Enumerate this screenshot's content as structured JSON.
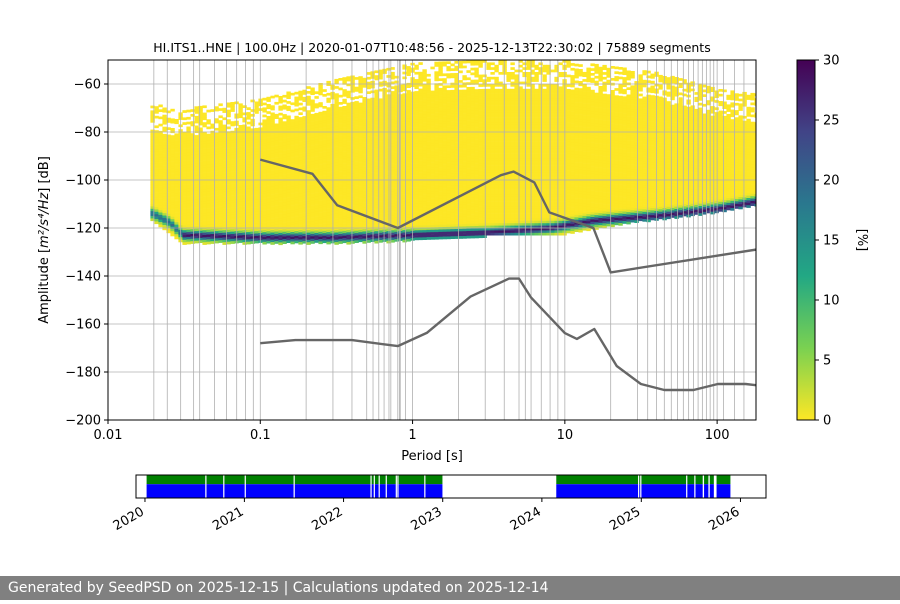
{
  "chart_data": [
    {
      "type": "heatmap",
      "title": "HI.ITS1..HNE | 100.0Hz | 2020-01-07T10:48:56 - 2025-12-13T22:30:02 | 75889 segments",
      "xlabel": "Period [s]",
      "ylabel_prefix": "Amplitude [",
      "ylabel_unit": "m²/s⁴/Hz",
      "ylabel_suffix": "] [dB]",
      "x_scale": "log",
      "xlim": [
        0.01,
        180
      ],
      "ylim": [
        -200,
        -50
      ],
      "x_ticks": [
        {
          "value": 0.01,
          "label": "0.01"
        },
        {
          "value": 0.1,
          "label": "0.1"
        },
        {
          "value": 1,
          "label": "1"
        },
        {
          "value": 10,
          "label": "10"
        },
        {
          "value": 100,
          "label": "100"
        }
      ],
      "y_ticks": [
        {
          "value": -60,
          "label": "−60"
        },
        {
          "value": -80,
          "label": "−80"
        },
        {
          "value": -100,
          "label": "−100"
        },
        {
          "value": -120,
          "label": "−120"
        },
        {
          "value": -140,
          "label": "−140"
        },
        {
          "value": -160,
          "label": "−160"
        },
        {
          "value": -180,
          "label": "−180"
        },
        {
          "value": -200,
          "label": "−200"
        }
      ],
      "grid": true,
      "colormap": "viridis_r",
      "colorbar": {
        "label": "[%]",
        "range": [
          0,
          30
        ],
        "ticks": [
          {
            "value": 0,
            "label": "0"
          },
          {
            "value": 5,
            "label": "5"
          },
          {
            "value": 10,
            "label": "10"
          },
          {
            "value": 15,
            "label": "15"
          },
          {
            "value": 20,
            "label": "20"
          },
          {
            "value": 25,
            "label": "25"
          },
          {
            "value": 30,
            "label": "30"
          }
        ],
        "colors": [
          "#fde725",
          "#7ad151",
          "#22a884",
          "#2a788e",
          "#414487",
          "#440154"
        ]
      },
      "psd_distribution": {
        "period_start": 0.019,
        "mode_db": [
          [
            0.019,
            -114
          ],
          [
            0.025,
            -118
          ],
          [
            0.03,
            -123
          ],
          [
            0.1,
            -124
          ],
          [
            0.3,
            -124
          ],
          [
            1,
            -123
          ],
          [
            3,
            -122
          ],
          [
            8,
            -120
          ],
          [
            15,
            -117
          ],
          [
            40,
            -115
          ],
          [
            100,
            -112
          ],
          [
            180,
            -109
          ]
        ],
        "upper_edge_db": [
          [
            0.019,
            -68
          ],
          [
            0.03,
            -70
          ],
          [
            0.1,
            -66
          ],
          [
            0.3,
            -58
          ],
          [
            1,
            -51
          ],
          [
            3,
            -50
          ],
          [
            10,
            -50
          ],
          [
            40,
            -55
          ],
          [
            100,
            -62
          ],
          [
            180,
            -64
          ]
        ],
        "lower_edge_db": [
          [
            0.019,
            -117
          ],
          [
            0.03,
            -126
          ],
          [
            0.1,
            -126
          ],
          [
            0.3,
            -126
          ],
          [
            1,
            -125
          ],
          [
            3,
            -123
          ],
          [
            10,
            -122
          ],
          [
            30,
            -117
          ],
          [
            100,
            -113
          ],
          [
            180,
            -110
          ]
        ]
      },
      "noise_models": [
        {
          "color": "#666666",
          "points": [
            [
              0.1,
              -91.5
            ],
            [
              0.22,
              -97.4
            ],
            [
              0.32,
              -110.5
            ],
            [
              0.8,
              -120
            ],
            [
              3.8,
              -98
            ],
            [
              4.6,
              -96.5
            ],
            [
              6.3,
              -101
            ],
            [
              7.9,
              -113.5
            ],
            [
              15.4,
              -120
            ],
            [
              20,
              -138.5
            ],
            [
              180,
              -129
            ]
          ]
        },
        {
          "color": "#666666",
          "points": [
            [
              0.1,
              -168
            ],
            [
              0.17,
              -166.7
            ],
            [
              0.4,
              -166.7
            ],
            [
              0.8,
              -169.2
            ],
            [
              1.24,
              -163.7
            ],
            [
              2.4,
              -148.6
            ],
            [
              4.3,
              -141.1
            ],
            [
              5,
              -141.1
            ],
            [
              6,
              -149
            ],
            [
              10,
              -163.8
            ],
            [
              12,
              -166.2
            ],
            [
              15.6,
              -162.1
            ],
            [
              21.9,
              -177.5
            ],
            [
              31.6,
              -185
            ],
            [
              45,
              -187.5
            ],
            [
              70,
              -187.5
            ],
            [
              101,
              -185
            ],
            [
              154,
              -185
            ],
            [
              180,
              -185.5
            ]
          ]
        }
      ],
      "period_grid_lines": [
        0.02,
        0.03,
        0.04,
        0.05,
        0.06,
        0.07,
        0.08,
        0.09,
        0.2,
        0.3,
        0.4,
        0.5,
        0.6,
        0.7,
        0.8,
        0.9,
        2,
        3,
        4,
        5,
        6,
        7,
        8,
        9,
        20,
        30,
        40,
        50,
        60,
        70,
        80,
        90,
        0.0245,
        0.0365,
        0.55,
        0.65,
        0.72,
        0.82,
        0.83,
        5.5,
        35,
        45,
        55,
        65,
        75,
        85,
        95,
        110,
        130,
        150
      ]
    },
    {
      "type": "timeline",
      "x_type": "date",
      "xlim": [
        "2019-11-29",
        "2026-04-05"
      ],
      "x_ticks": [
        {
          "value": "2020-01-01",
          "label": "2020"
        },
        {
          "value": "2021-01-01",
          "label": "2021"
        },
        {
          "value": "2022-01-01",
          "label": "2022"
        },
        {
          "value": "2023-01-01",
          "label": "2023"
        },
        {
          "value": "2024-01-01",
          "label": "2024"
        },
        {
          "value": "2025-01-01",
          "label": "2025"
        },
        {
          "value": "2026-01-01",
          "label": "2026"
        }
      ],
      "tick_label_rotation": 30,
      "top_color": "#008000",
      "bottom_color": "#0000ff",
      "data_segments": [
        [
          "2020-01-07",
          "2022-12-31"
        ],
        [
          "2024-02-23",
          "2025-08-15"
        ],
        [
          "2025-08-20",
          "2025-09-05"
        ],
        [
          "2025-09-10",
          "2025-09-25"
        ],
        [
          "2025-10-05",
          "2025-11-25"
        ]
      ],
      "gaps": [
        "2020-08-10",
        "2020-10-15",
        "2021-01-02",
        "2021-07-01",
        "2022-04-10",
        "2022-04-22",
        "2022-05-10",
        "2022-06-05",
        "2022-07-12",
        "2022-07-18",
        "2022-10-25",
        "2024-12-20",
        "2024-12-28",
        "2025-06-15",
        "2025-07-15"
      ]
    }
  ],
  "footer": {
    "text": "Generated by SeedPSD on 2025-12-15 | Calculations updated on 2025-12-14",
    "background": "#808080"
  }
}
